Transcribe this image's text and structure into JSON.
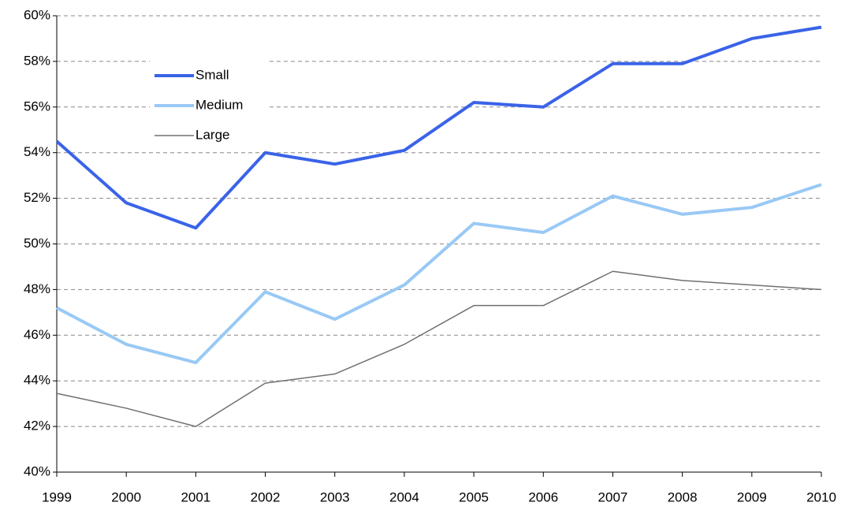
{
  "chart_data": {
    "type": "line",
    "x": [
      1999,
      2000,
      2001,
      2002,
      2003,
      2004,
      2005,
      2006,
      2007,
      2008,
      2009,
      2010
    ],
    "series": [
      {
        "name": "Small",
        "color": "#3a63e8",
        "width": 4,
        "values": [
          54.5,
          51.8,
          50.7,
          54.0,
          53.5,
          54.1,
          56.2,
          56.0,
          57.9,
          57.9,
          59.0,
          59.5
        ]
      },
      {
        "name": "Medium",
        "color": "#99c9f5",
        "width": 4,
        "values": [
          47.2,
          45.6,
          44.8,
          47.9,
          46.7,
          48.2,
          50.9,
          50.5,
          52.1,
          51.3,
          51.6,
          52.6
        ]
      },
      {
        "name": "Large",
        "color": "#707070",
        "width": 1.5,
        "values": [
          43.45,
          42.8,
          42.0,
          43.9,
          44.3,
          45.6,
          47.3,
          47.3,
          48.8,
          48.4,
          48.2,
          48.0
        ]
      }
    ],
    "xlim": [
      1999,
      2010
    ],
    "xticks": [
      1999,
      2000,
      2001,
      2002,
      2003,
      2004,
      2005,
      2006,
      2007,
      2008,
      2009,
      2010
    ],
    "ylim": [
      40,
      60
    ],
    "yticks": [
      {
        "value": 40,
        "label": "40%"
      },
      {
        "value": 42,
        "label": "42%"
      },
      {
        "value": 44,
        "label": "44%"
      },
      {
        "value": 46,
        "label": "46%"
      },
      {
        "value": 48,
        "label": "48%"
      },
      {
        "value": 50,
        "label": "50%"
      },
      {
        "value": 52,
        "label": "52%"
      },
      {
        "value": 54,
        "label": "54%"
      },
      {
        "value": 56,
        "label": "56%"
      },
      {
        "value": 58,
        "label": "58%"
      },
      {
        "value": 60,
        "label": "60%"
      }
    ],
    "grid": true,
    "legend": "upper-left"
  }
}
